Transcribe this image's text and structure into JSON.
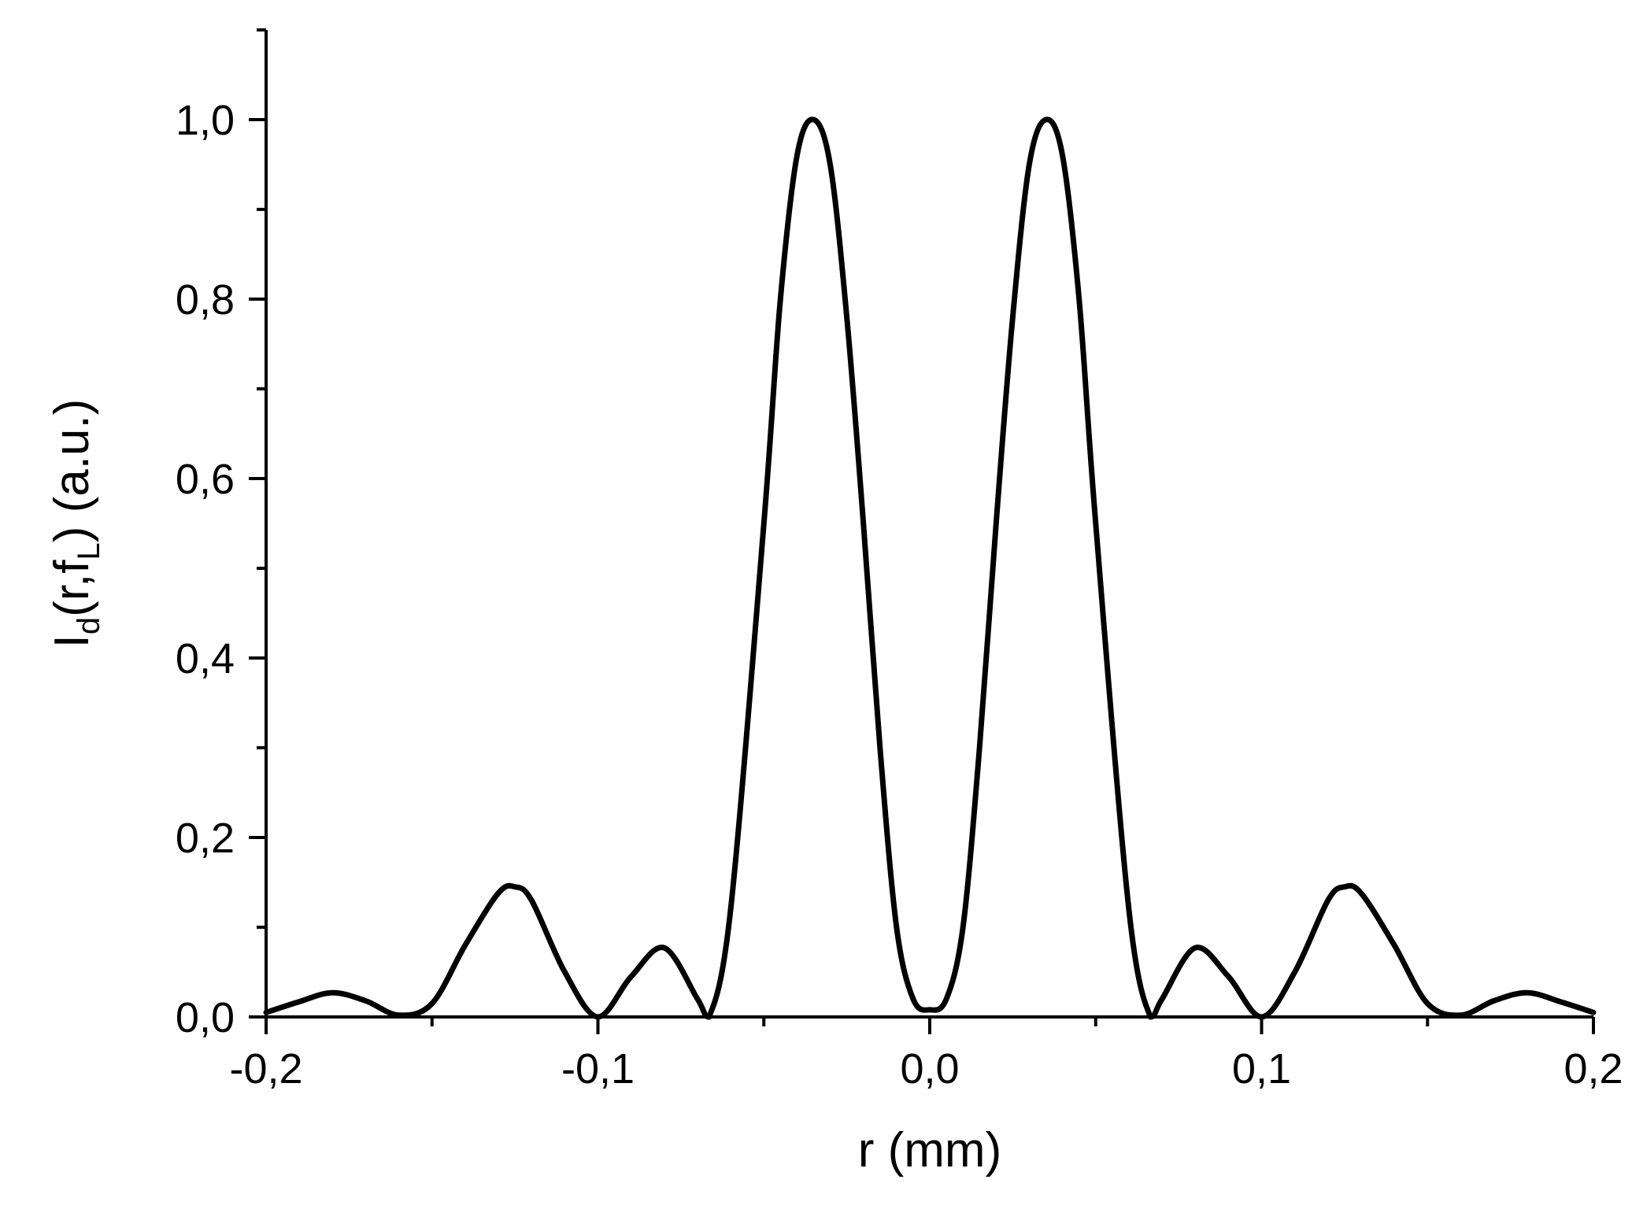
{
  "chart_data": {
    "type": "line",
    "title": "",
    "xlabel": "r (mm)",
    "ylabel": {
      "main": "I",
      "sub1": "d",
      "mid": "(r,f",
      "sub2": "L",
      "tail": ") (a.u.)"
    },
    "xlim": [
      -0.2,
      0.2
    ],
    "ylim": [
      0.0,
      1.1
    ],
    "x_ticks": [
      {
        "value": -0.2,
        "label": "-0,2"
      },
      {
        "value": -0.1,
        "label": "-0,1"
      },
      {
        "value": 0.0,
        "label": "0,0"
      },
      {
        "value": 0.1,
        "label": "0,1"
      },
      {
        "value": 0.2,
        "label": "0,2"
      }
    ],
    "x_minor_ticks": [
      -0.15,
      -0.05,
      0.05,
      0.15
    ],
    "y_ticks": [
      {
        "value": 0.0,
        "label": "0,0"
      },
      {
        "value": 0.2,
        "label": "0,2"
      },
      {
        "value": 0.4,
        "label": "0,4"
      },
      {
        "value": 0.6,
        "label": "0,6"
      },
      {
        "value": 0.8,
        "label": "0,8"
      },
      {
        "value": 1.0,
        "label": "1,0"
      }
    ],
    "y_minor_ticks": [
      0.1,
      0.3,
      0.5,
      0.7,
      0.9,
      1.1
    ],
    "grid": false,
    "line_color": "#000000",
    "series": [
      {
        "x": [
          -0.2,
          -0.19,
          -0.18,
          -0.17,
          -0.16,
          -0.15,
          -0.14,
          -0.13,
          -0.125,
          -0.12,
          -0.11,
          -0.1,
          -0.09,
          -0.08,
          -0.07,
          -0.0665,
          -0.06,
          -0.05,
          -0.045,
          -0.04,
          -0.035,
          -0.03,
          -0.025,
          -0.02,
          -0.015,
          -0.01,
          -0.005,
          0.0,
          0.005,
          0.01,
          0.015,
          0.02,
          0.025,
          0.03,
          0.035,
          0.04,
          0.045,
          0.05,
          0.06,
          0.0665,
          0.07,
          0.08,
          0.09,
          0.1,
          0.11,
          0.12,
          0.125,
          0.13,
          0.14,
          0.15,
          0.16,
          0.17,
          0.18,
          0.19,
          0.2
        ],
        "y": [
          0.005,
          0.017,
          0.027,
          0.018,
          0.002,
          0.015,
          0.08,
          0.138,
          0.145,
          0.13,
          0.05,
          0.0,
          0.045,
          0.077,
          0.02,
          0.0,
          0.12,
          0.55,
          0.8,
          0.96,
          1.0,
          0.95,
          0.78,
          0.55,
          0.3,
          0.1,
          0.02,
          0.008,
          0.02,
          0.1,
          0.3,
          0.55,
          0.78,
          0.95,
          1.0,
          0.96,
          0.8,
          0.55,
          0.12,
          0.0,
          0.02,
          0.077,
          0.045,
          0.0,
          0.05,
          0.13,
          0.145,
          0.138,
          0.08,
          0.015,
          0.002,
          0.018,
          0.027,
          0.017,
          0.005
        ]
      }
    ]
  }
}
